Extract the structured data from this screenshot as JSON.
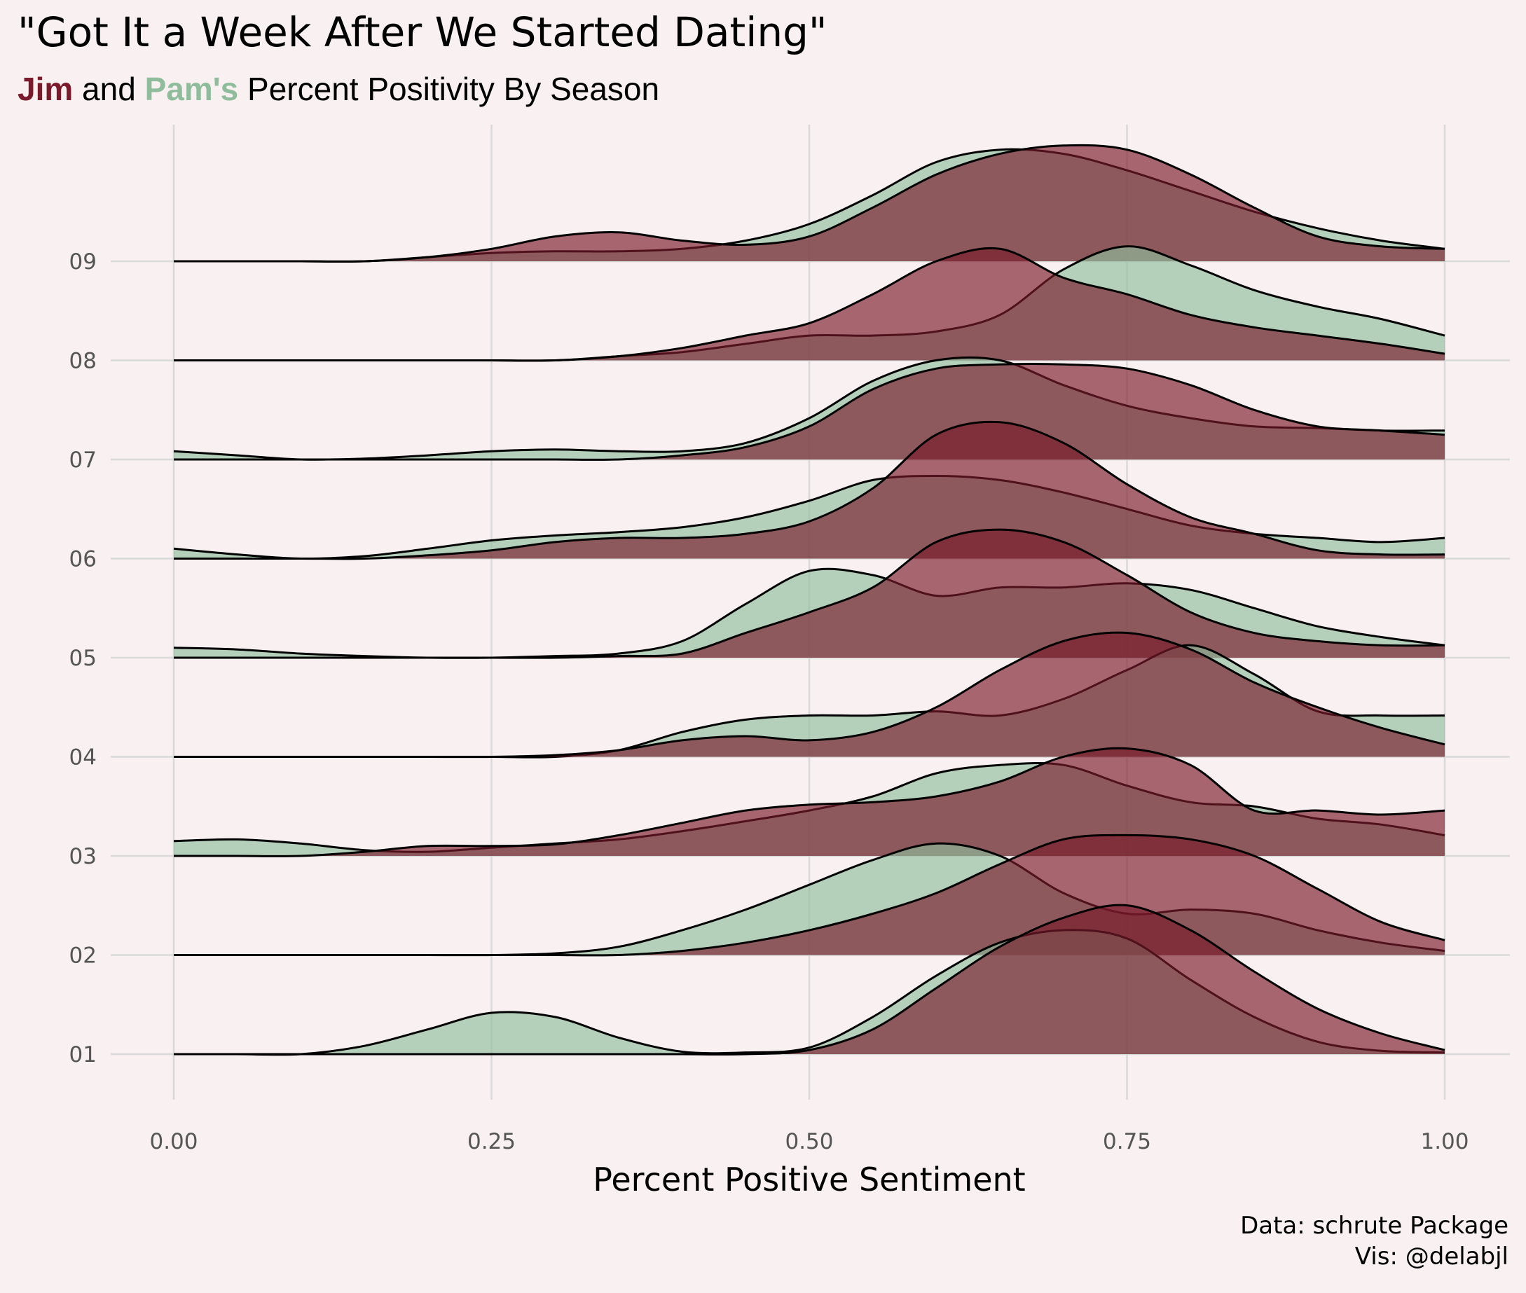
{
  "title": "\"Got It a Week After We Started Dating\"",
  "subtitle": {
    "jim": "Jim",
    "and": " and ",
    "pam": "Pam's",
    "rest": " Percent Positivity By Season"
  },
  "caption": {
    "line1": "Data: schrute Package",
    "line2": "Vis: @delabjl"
  },
  "colors": {
    "background": "#f8f0f1",
    "jim": "#7a1a2a",
    "pam": "#8fbd9c",
    "grid": "#d9d9d9"
  },
  "chart_data": {
    "type": "area",
    "subtype": "ridgeline-density",
    "title": "\"Got It a Week After We Started Dating\"",
    "subtitle": "Jim and Pam's Percent Positivity By Season",
    "xlabel": "Percent Positive Sentiment",
    "ylabel": "",
    "xlim": [
      0,
      1
    ],
    "x_ticks": [
      "0.00",
      "0.25",
      "0.50",
      "0.75",
      "1.00"
    ],
    "x_tick_values": [
      0,
      0.25,
      0.5,
      0.75,
      1.0
    ],
    "categories": [
      "01",
      "02",
      "03",
      "04",
      "05",
      "06",
      "07",
      "08",
      "09"
    ],
    "grid": true,
    "legend": "none (encoded in subtitle colors)",
    "x": [
      0,
      0.05,
      0.1,
      0.15,
      0.2,
      0.25,
      0.3,
      0.35,
      0.4,
      0.45,
      0.5,
      0.55,
      0.6,
      0.65,
      0.7,
      0.75,
      0.8,
      0.85,
      0.9,
      0.95,
      1.0
    ],
    "series": [
      {
        "name": "Jim",
        "color": "#7a1a2a",
        "ridges": [
          {
            "season": "01",
            "density": [
              0,
              0,
              0,
              0,
              0,
              0,
              0,
              0,
              0,
              0,
              0.05,
              0.3,
              0.8,
              1.3,
              1.65,
              1.8,
              1.5,
              1.0,
              0.55,
              0.25,
              0.05
            ]
          },
          {
            "season": "02",
            "density": [
              0,
              0,
              0,
              0,
              0,
              0,
              0,
              0,
              0.05,
              0.15,
              0.3,
              0.5,
              0.75,
              1.1,
              1.4,
              1.45,
              1.4,
              1.2,
              0.8,
              0.4,
              0.18
            ]
          },
          {
            "season": "03",
            "density": [
              0,
              0,
              0,
              0.05,
              0.12,
              0.12,
              0.14,
              0.25,
              0.4,
              0.55,
              0.62,
              0.65,
              0.72,
              0.9,
              1.2,
              1.3,
              1.1,
              0.55,
              0.55,
              0.5,
              0.55
            ]
          },
          {
            "season": "04",
            "density": [
              0,
              0,
              0,
              0,
              0,
              0,
              0.02,
              0.08,
              0.2,
              0.25,
              0.2,
              0.3,
              0.6,
              1.05,
              1.4,
              1.5,
              1.3,
              0.9,
              0.6,
              0.35,
              0.15
            ]
          },
          {
            "season": "05",
            "density": [
              0,
              0,
              0,
              0,
              0,
              0,
              0,
              0.02,
              0.05,
              0.3,
              0.55,
              0.85,
              1.4,
              1.55,
              1.4,
              1.0,
              0.55,
              0.3,
              0.2,
              0.15,
              0.15
            ]
          },
          {
            "season": "06",
            "density": [
              0,
              0,
              0,
              0,
              0.04,
              0.1,
              0.2,
              0.25,
              0.25,
              0.3,
              0.45,
              0.85,
              1.5,
              1.65,
              1.4,
              0.9,
              0.5,
              0.3,
              0.1,
              0.05,
              0.05
            ]
          },
          {
            "season": "07",
            "density": [
              0,
              0,
              0,
              0,
              0,
              0,
              0,
              0,
              0.05,
              0.15,
              0.4,
              0.85,
              1.1,
              1.15,
              1.15,
              1.1,
              0.9,
              0.6,
              0.4,
              0.35,
              0.3
            ]
          },
          {
            "season": "08",
            "density": [
              0,
              0,
              0,
              0,
              0,
              0,
              0,
              0.05,
              0.15,
              0.3,
              0.45,
              0.8,
              1.2,
              1.35,
              1.0,
              0.8,
              0.55,
              0.4,
              0.3,
              0.2,
              0.08
            ]
          },
          {
            "season": "09",
            "density": [
              0,
              0,
              0,
              0,
              0.05,
              0.15,
              0.3,
              0.35,
              0.25,
              0.2,
              0.3,
              0.65,
              1.05,
              1.3,
              1.4,
              1.35,
              1.05,
              0.65,
              0.3,
              0.18,
              0.15
            ]
          }
        ]
      },
      {
        "name": "Pam",
        "color": "#8fbd9c",
        "ridges": [
          {
            "season": "01",
            "density": [
              0,
              0,
              0,
              0.1,
              0.3,
              0.5,
              0.45,
              0.2,
              0.03,
              0.02,
              0.08,
              0.45,
              0.95,
              1.35,
              1.5,
              1.4,
              0.9,
              0.45,
              0.15,
              0.04,
              0.02
            ]
          },
          {
            "season": "02",
            "density": [
              0,
              0,
              0,
              0,
              0,
              0,
              0.02,
              0.1,
              0.3,
              0.55,
              0.85,
              1.15,
              1.35,
              1.2,
              0.75,
              0.5,
              0.55,
              0.5,
              0.3,
              0.15,
              0.05
            ]
          },
          {
            "season": "03",
            "density": [
              0.18,
              0.2,
              0.15,
              0.07,
              0.05,
              0.1,
              0.15,
              0.2,
              0.3,
              0.42,
              0.55,
              0.72,
              1.0,
              1.1,
              1.1,
              0.85,
              0.65,
              0.6,
              0.45,
              0.38,
              0.25
            ]
          },
          {
            "season": "04",
            "density": [
              0,
              0,
              0,
              0,
              0,
              0,
              0,
              0.08,
              0.3,
              0.45,
              0.5,
              0.5,
              0.55,
              0.5,
              0.7,
              1.05,
              1.35,
              1.0,
              0.55,
              0.5,
              0.5
            ]
          },
          {
            "season": "05",
            "density": [
              0.12,
              0.1,
              0.05,
              0.02,
              0,
              0,
              0.02,
              0.05,
              0.2,
              0.65,
              1.05,
              1.0,
              0.75,
              0.85,
              0.85,
              0.9,
              0.82,
              0.6,
              0.38,
              0.25,
              0.15
            ]
          },
          {
            "season": "06",
            "density": [
              0.12,
              0.05,
              0,
              0.03,
              0.12,
              0.22,
              0.28,
              0.32,
              0.38,
              0.5,
              0.7,
              0.95,
              1.0,
              0.95,
              0.8,
              0.6,
              0.4,
              0.3,
              0.25,
              0.2,
              0.25
            ]
          },
          {
            "season": "07",
            "density": [
              0.1,
              0.05,
              0,
              0.01,
              0.05,
              0.1,
              0.12,
              0.1,
              0.1,
              0.2,
              0.5,
              0.95,
              1.2,
              1.2,
              0.9,
              0.65,
              0.5,
              0.4,
              0.38,
              0.35,
              0.35
            ]
          },
          {
            "season": "08",
            "density": [
              0,
              0,
              0,
              0,
              0,
              0,
              0,
              0.05,
              0.1,
              0.2,
              0.3,
              0.3,
              0.35,
              0.55,
              1.1,
              1.38,
              1.15,
              0.85,
              0.65,
              0.5,
              0.3
            ]
          },
          {
            "season": "09",
            "density": [
              0,
              0,
              0,
              0,
              0.05,
              0.1,
              0.12,
              0.12,
              0.15,
              0.25,
              0.45,
              0.8,
              1.2,
              1.35,
              1.3,
              1.1,
              0.85,
              0.6,
              0.4,
              0.25,
              0.15
            ]
          }
        ]
      }
    ]
  }
}
